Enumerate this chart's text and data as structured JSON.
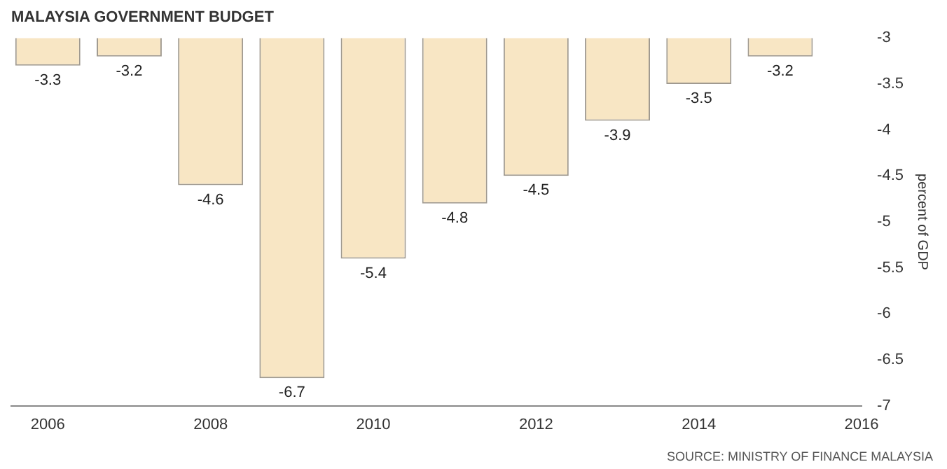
{
  "chart_data": {
    "type": "bar",
    "title": "MALAYSIA GOVERNMENT BUDGET",
    "ylabel": "percent of GDP",
    "x": [
      2006,
      2007,
      2008,
      2009,
      2010,
      2011,
      2012,
      2013,
      2014,
      2015
    ],
    "values": [
      -3.3,
      -3.2,
      -4.6,
      -6.7,
      -5.4,
      -4.8,
      -4.5,
      -3.9,
      -3.5,
      -3.2
    ],
    "color": "#f8e6c4",
    "xlim": [
      2005.55,
      2016
    ],
    "xticks": [
      2006,
      2008,
      2010,
      2012,
      2014,
      2016
    ],
    "ylim": [
      -7,
      -3
    ],
    "yticks": [
      -7,
      -6.5,
      -6,
      -5.5,
      -5,
      -4.5,
      -4,
      -3.5,
      -3
    ],
    "data_labels": true,
    "annotations": [
      "SOURCE: MINISTRY OF FINANCE MALAYSIA"
    ]
  }
}
